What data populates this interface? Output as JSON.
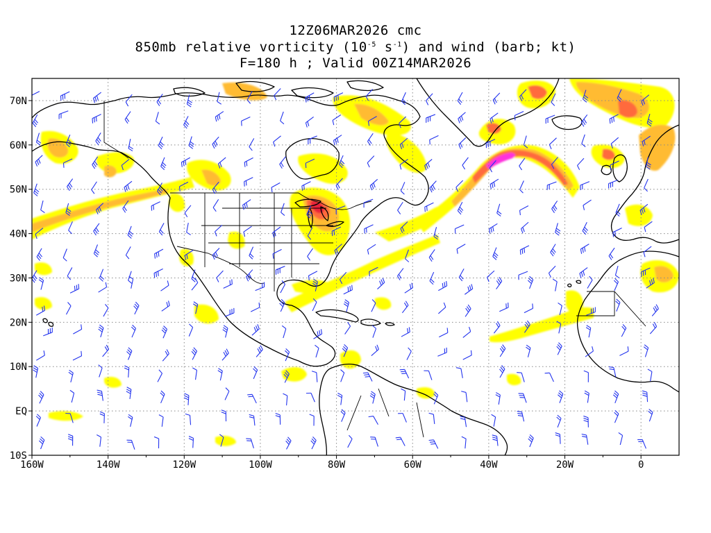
{
  "title": {
    "line1": "12Z06MAR2026 cmc",
    "line2_prefix": "850mb relative vorticity (10",
    "line2_exp1": "-5",
    "line2_mid": " s",
    "line2_exp2": "-1",
    "line2_suffix": ") and wind (barb; kt)",
    "line3": "F=180 h ; Valid 00Z14MAR2026"
  },
  "axes": {
    "lon_range": [
      -160,
      10
    ],
    "lat_range": [
      -10,
      75
    ],
    "lon_ticks": [
      {
        "value": -160,
        "label": "160W"
      },
      {
        "value": -140,
        "label": "140W"
      },
      {
        "value": -120,
        "label": "120W"
      },
      {
        "value": -100,
        "label": "100W"
      },
      {
        "value": -80,
        "label": "80W"
      },
      {
        "value": -60,
        "label": "60W"
      },
      {
        "value": -40,
        "label": "40W"
      },
      {
        "value": -20,
        "label": "20W"
      },
      {
        "value": 0,
        "label": "0"
      }
    ],
    "lat_ticks": [
      {
        "value": 70,
        "label": "70N"
      },
      {
        "value": 60,
        "label": "60N"
      },
      {
        "value": 50,
        "label": "50N"
      },
      {
        "value": 40,
        "label": "40N"
      },
      {
        "value": 30,
        "label": "30N"
      },
      {
        "value": 20,
        "label": "20N"
      },
      {
        "value": 10,
        "label": "10N"
      },
      {
        "value": 0,
        "label": "EQ"
      },
      {
        "value": -10,
        "label": "10S"
      }
    ]
  },
  "colors": {
    "vort_light": "#ffff00",
    "vort_mid": "#ffbb33",
    "vort_high": "#ff6a3d",
    "vort_very_high": "#e8233b",
    "vort_extreme": "#ff33dd",
    "coast": "#000000",
    "barb": "#2233ee",
    "grid": "#888888"
  },
  "vorticity_features": [
    {
      "name": "north-pacific-band",
      "lon": [
        -160,
        -125
      ],
      "lat": [
        40,
        48
      ],
      "level": "mid"
    },
    {
      "name": "great-lakes-max",
      "lon": [
        -90,
        -82
      ],
      "lat": [
        42,
        47
      ],
      "level": "very_high"
    },
    {
      "name": "north-atlantic-band",
      "lon": [
        -45,
        -25
      ],
      "lat": [
        48,
        60
      ],
      "level": "extreme"
    },
    {
      "name": "greenland-east",
      "lon": [
        -20,
        0
      ],
      "lat": [
        65,
        75
      ],
      "level": "high"
    },
    {
      "name": "tropical-atlantic-band",
      "lon": [
        -40,
        -15
      ],
      "lat": [
        17,
        24
      ],
      "level": "light"
    }
  ]
}
